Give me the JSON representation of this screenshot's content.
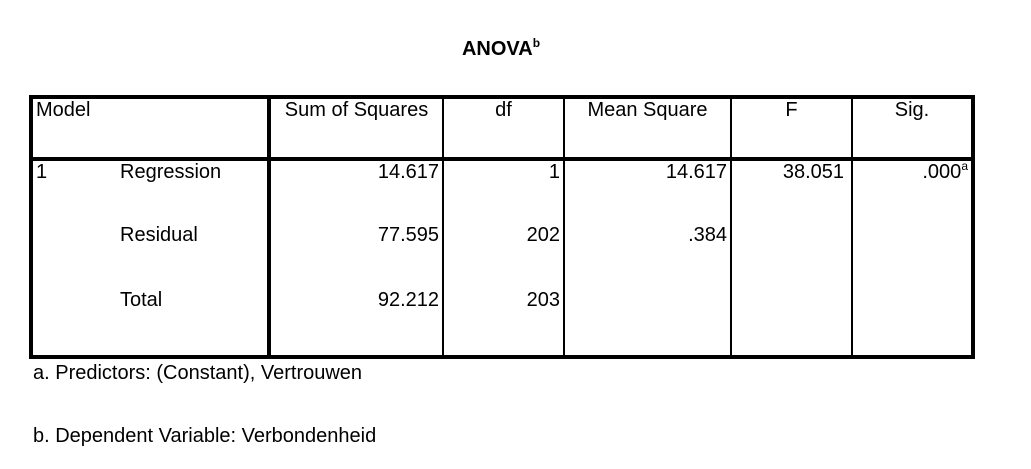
{
  "title": {
    "text": "ANOVA",
    "superscript": "b"
  },
  "table": {
    "headers": {
      "model": "Model",
      "sum_of_squares": "Sum of Squares",
      "df": "df",
      "mean_square": "Mean Square",
      "f": "F",
      "sig": "Sig."
    },
    "rows": [
      {
        "model": "1",
        "source": "Regression",
        "sum_of_squares": "14.617",
        "df": "1",
        "mean_square": "14.617",
        "f": "38.051",
        "sig": ".000",
        "sig_superscript": "a"
      },
      {
        "model": "",
        "source": "Residual",
        "sum_of_squares": "77.595",
        "df": "202",
        "mean_square": ".384",
        "f": "",
        "sig": "",
        "sig_superscript": ""
      },
      {
        "model": "",
        "source": "Total",
        "sum_of_squares": "92.212",
        "df": "203",
        "mean_square": "",
        "f": "",
        "sig": "",
        "sig_superscript": ""
      }
    ]
  },
  "footnotes": {
    "a": "a. Predictors: (Constant), Vertrouwen",
    "b": "b. Dependent Variable: Verbondenheid"
  }
}
